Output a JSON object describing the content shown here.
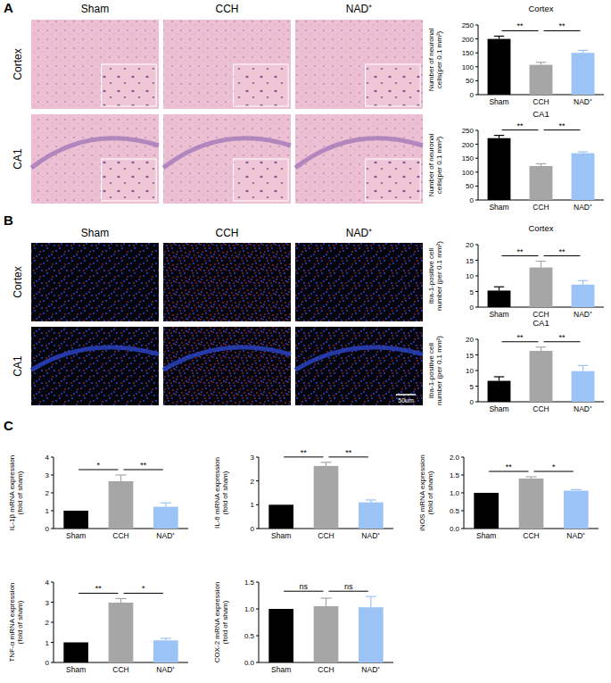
{
  "chart_data": [
    {
      "type": "bar",
      "title": "Cortex",
      "ylabel": [
        "Number of neuronal",
        "cells(per 0.1 mm²)"
      ],
      "categories": [
        "Sham",
        "CCH",
        "NAD⁺"
      ],
      "values": [
        200,
        107,
        150
      ],
      "errors": [
        10,
        9,
        9
      ],
      "colors": [
        "#000000",
        "#a6a6a6",
        "#9cc3f5"
      ],
      "ylim": [
        0,
        250
      ],
      "yticks": [
        0,
        50,
        100,
        150,
        200,
        250
      ],
      "annotations": [
        {
          "from": "Sham",
          "to": "CCH",
          "text": "**"
        },
        {
          "from": "CCH",
          "to": "NAD⁺",
          "text": "**"
        }
      ]
    },
    {
      "type": "bar",
      "title": "CA1",
      "ylabel": [
        "Number of neuronal",
        "cells(per 0.1 mm²)"
      ],
      "categories": [
        "Sham",
        "CCH",
        "NAD⁺"
      ],
      "values": [
        222,
        122,
        168
      ],
      "errors": [
        10,
        8,
        5
      ],
      "colors": [
        "#000000",
        "#a6a6a6",
        "#9cc3f5"
      ],
      "ylim": [
        0,
        250
      ],
      "yticks": [
        0,
        50,
        100,
        150,
        200,
        250
      ],
      "annotations": [
        {
          "from": "Sham",
          "to": "CCH",
          "text": "**"
        },
        {
          "from": "CCH",
          "to": "NAD⁺",
          "text": "**"
        }
      ]
    },
    {
      "type": "bar",
      "title": "Cortex",
      "ylabel": [
        "Iba-1-positive cell",
        "number (per 0.1 mm²)"
      ],
      "categories": [
        "Sham",
        "CCH",
        "NAD⁺"
      ],
      "values": [
        5.3,
        12.7,
        7.2
      ],
      "errors": [
        1.2,
        2.0,
        1.3
      ],
      "colors": [
        "#000000",
        "#a6a6a6",
        "#9cc3f5"
      ],
      "ylim": [
        0,
        20
      ],
      "yticks": [
        0,
        5,
        10,
        15,
        20
      ],
      "annotations": [
        {
          "from": "Sham",
          "to": "CCH",
          "text": "**"
        },
        {
          "from": "CCH",
          "to": "NAD⁺",
          "text": "**"
        }
      ]
    },
    {
      "type": "bar",
      "title": "CA1",
      "ylabel": [
        "Iba-1-positive cell",
        "number (per 0.1 mm²)"
      ],
      "categories": [
        "Sham",
        "CCH",
        "NAD⁺"
      ],
      "values": [
        6.7,
        16.3,
        9.8
      ],
      "errors": [
        1.3,
        1.2,
        1.8
      ],
      "colors": [
        "#000000",
        "#a6a6a6",
        "#9cc3f5"
      ],
      "ylim": [
        0,
        20
      ],
      "yticks": [
        0,
        5,
        10,
        15,
        20
      ],
      "annotations": [
        {
          "from": "Sham",
          "to": "CCH",
          "text": "**"
        },
        {
          "from": "CCH",
          "to": "NAD⁺",
          "text": "**"
        }
      ]
    },
    {
      "type": "bar",
      "ylabel": [
        "IL-1β mRNA expression",
        "(fold of sham)"
      ],
      "categories": [
        "Sham",
        "CCH",
        "NAD⁺"
      ],
      "values": [
        1,
        2.65,
        1.22
      ],
      "errors": [
        0,
        0.35,
        0.22
      ],
      "colors": [
        "#000000",
        "#a6a6a6",
        "#9cc3f5"
      ],
      "ylim": [
        0,
        4
      ],
      "yticks": [
        0,
        1,
        2,
        3,
        4
      ],
      "annotations": [
        {
          "from": "Sham",
          "to": "CCH",
          "text": "*"
        },
        {
          "from": "CCH",
          "to": "NAD⁺",
          "text": "**"
        }
      ]
    },
    {
      "type": "bar",
      "ylabel": [
        "IL-6 mRNA expression",
        "(fold of sham)"
      ],
      "categories": [
        "Sham",
        "CCH",
        "NAD⁺"
      ],
      "values": [
        1,
        2.63,
        1.1
      ],
      "errors": [
        0,
        0.15,
        0.1
      ],
      "colors": [
        "#000000",
        "#a6a6a6",
        "#9cc3f5"
      ],
      "ylim": [
        0,
        3
      ],
      "yticks": [
        0,
        1,
        2,
        3
      ],
      "annotations": [
        {
          "from": "Sham",
          "to": "CCH",
          "text": "**"
        },
        {
          "from": "CCH",
          "to": "NAD⁺",
          "text": "**"
        }
      ]
    },
    {
      "type": "bar",
      "ylabel": [
        "iNOS mRNA expression",
        "(fold of sham)"
      ],
      "categories": [
        "Sham",
        "CCH",
        "NAD⁺"
      ],
      "values": [
        1,
        1.4,
        1.06
      ],
      "errors": [
        0,
        0.05,
        0.03
      ],
      "colors": [
        "#000000",
        "#a6a6a6",
        "#9cc3f5"
      ],
      "ylim": [
        0,
        2
      ],
      "yticks": [
        {
          "value": 0,
          "label": "0.0"
        },
        {
          "value": 0.5,
          "label": "0.5"
        },
        {
          "value": 1,
          "label": "1.0"
        },
        {
          "value": 1.5,
          "label": "1.5"
        },
        {
          "value": 2,
          "label": "2.0"
        }
      ],
      "annotations": [
        {
          "from": "Sham",
          "to": "CCH",
          "text": "**"
        },
        {
          "from": "CCH",
          "to": "NAD⁺",
          "text": "*"
        }
      ]
    },
    {
      "type": "bar",
      "ylabel": [
        "TNF-α mRNA expression",
        "(fold of sham)"
      ],
      "categories": [
        "Sham",
        "CCH",
        "NAD⁺"
      ],
      "values": [
        1,
        2.98,
        1.1
      ],
      "errors": [
        0,
        0.2,
        0.1
      ],
      "colors": [
        "#000000",
        "#a6a6a6",
        "#9cc3f5"
      ],
      "ylim": [
        0,
        4
      ],
      "yticks": [
        0,
        1,
        2,
        3,
        4
      ],
      "annotations": [
        {
          "from": "Sham",
          "to": "CCH",
          "text": "**"
        },
        {
          "from": "CCH",
          "to": "NAD⁺",
          "text": "*"
        }
      ]
    },
    {
      "type": "bar",
      "ylabel": [
        "COX-2 mRNA expression",
        "(fold of sham)"
      ],
      "categories": [
        "Sham",
        "CCH",
        "NAD⁺"
      ],
      "values": [
        1,
        1.05,
        1.03
      ],
      "errors": [
        0,
        0.15,
        0.2
      ],
      "colors": [
        "#000000",
        "#a6a6a6",
        "#9cc3f5"
      ],
      "ylim": [
        0,
        1.5
      ],
      "yticks": [
        {
          "value": 0,
          "label": "0.0"
        },
        {
          "value": 0.5,
          "label": "0.5"
        },
        {
          "value": 1,
          "label": "1.0"
        },
        {
          "value": 1.5,
          "label": "1.5"
        }
      ],
      "annotations": [
        {
          "from": "Sham",
          "to": "CCH",
          "text": "ns"
        },
        {
          "from": "CCH",
          "to": "NAD⁺",
          "text": "ns"
        }
      ]
    }
  ],
  "figure": {
    "panels": [
      {
        "label": "A",
        "columns": [
          "Sham",
          "CCH",
          "NAD⁺"
        ],
        "rows": [
          "Cortex",
          "CA1"
        ]
      },
      {
        "label": "B",
        "columns": [
          "Sham",
          "CCH",
          "NAD⁺"
        ],
        "rows": [
          "Cortex",
          "CA1"
        ],
        "scale_bar": "50um"
      },
      {
        "label": "C"
      }
    ]
  }
}
